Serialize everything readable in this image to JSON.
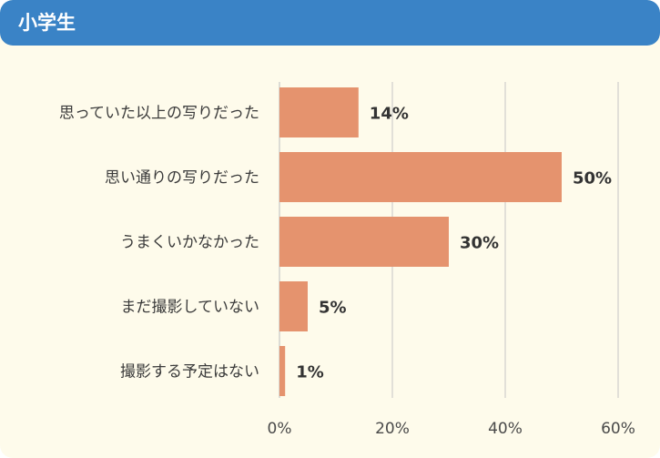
{
  "header": {
    "title": "小学生"
  },
  "colors": {
    "header_bg": "#3a83c6",
    "panel_bg": "#fefbeb",
    "bar": "#e5936e",
    "grid": "#d8d8d2"
  },
  "chart_data": {
    "type": "bar",
    "orientation": "horizontal",
    "title": "小学生",
    "categories": [
      "思っていた以上の写りだった",
      "思い通りの写りだった",
      "うまくいかなかった",
      "まだ撮影していない",
      "撮影する予定はない"
    ],
    "values": [
      14,
      50,
      30,
      5,
      1
    ],
    "value_labels": [
      "14%",
      "50%",
      "30%",
      "5%",
      "1%"
    ],
    "xlim": [
      0,
      60
    ],
    "xticks": [
      0,
      20,
      40,
      60
    ],
    "xtick_labels": [
      "0%",
      "20%",
      "40%",
      "60%"
    ],
    "grid": true
  }
}
